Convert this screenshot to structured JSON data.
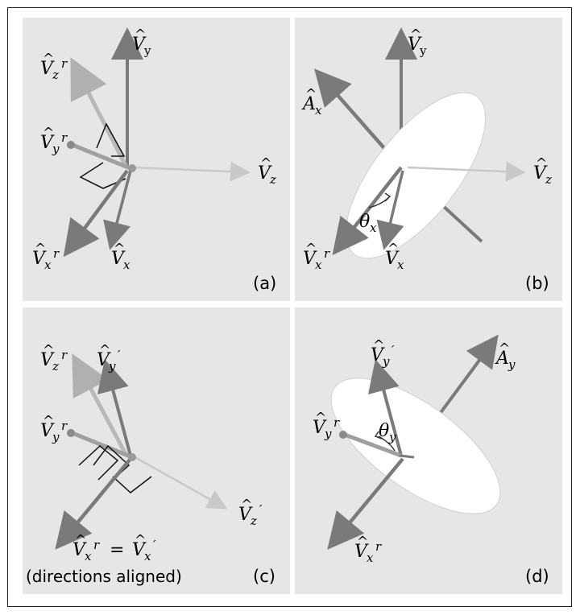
{
  "panels": {
    "a": {
      "tag": "(a)",
      "labels": {
        "vy": {
          "main": "V",
          "sub": "y",
          "sup": ""
        },
        "vzr": {
          "main": "V",
          "sub": "z",
          "sup": "r"
        },
        "vyr": {
          "main": "V",
          "sub": "y",
          "sup": "r"
        },
        "vz": {
          "main": "V",
          "sub": "z",
          "sup": ""
        },
        "vxr": {
          "main": "V",
          "sub": "x",
          "sup": "r"
        },
        "vx": {
          "main": "V",
          "sub": "x",
          "sup": ""
        }
      }
    },
    "b": {
      "tag": "(b)",
      "labels": {
        "vy": {
          "main": "V",
          "sub": "y",
          "sup": ""
        },
        "ax": {
          "main": "A",
          "sub": "x",
          "sup": ""
        },
        "vz": {
          "main": "V",
          "sub": "z",
          "sup": ""
        },
        "theta": {
          "main": "θ",
          "sub": "x",
          "sup": ""
        },
        "vxr": {
          "main": "V",
          "sub": "x",
          "sup": "r"
        },
        "vx": {
          "main": "V",
          "sub": "x",
          "sup": ""
        }
      }
    },
    "c": {
      "tag": "(c)",
      "note": "(directions aligned)",
      "labels": {
        "vzr": {
          "main": "V",
          "sub": "z",
          "sup": "r"
        },
        "vyp": {
          "main": "V",
          "sub": "y",
          "sup": "′"
        },
        "vyr": {
          "main": "V",
          "sub": "y",
          "sup": "r"
        },
        "vzp": {
          "main": "V",
          "sub": "z",
          "sup": "′"
        },
        "vxr": {
          "main": "V",
          "sub": "x",
          "sup": "r"
        },
        "eq": "=",
        "vxp": {
          "main": "V",
          "sub": "x",
          "sup": "′"
        }
      }
    },
    "d": {
      "tag": "(d)",
      "labels": {
        "vyp": {
          "main": "V",
          "sub": "y",
          "sup": "′"
        },
        "ay": {
          "main": "A",
          "sub": "y",
          "sup": ""
        },
        "theta": {
          "main": "θ",
          "sub": "y",
          "sup": ""
        },
        "vyr": {
          "main": "V",
          "sub": "y",
          "sup": "r"
        },
        "vxr": {
          "main": "V",
          "sub": "x",
          "sup": "r"
        }
      }
    }
  },
  "colors": {
    "panel_bg": "#e6e6e6",
    "axis_dark": "#7a7a7a",
    "axis_light": "#b8b8b8",
    "axis_faint": "#c9c9c9",
    "disc": "#ffffff"
  }
}
